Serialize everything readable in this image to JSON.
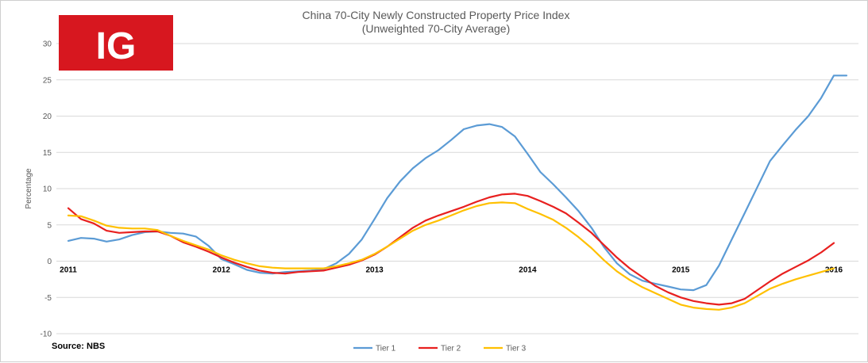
{
  "chart_data": {
    "type": "line",
    "title": "China 70-City Newly Constructed Property Price Index",
    "subtitle": "(Unweighted 70-City Average)",
    "ylabel": "Percentage",
    "xlabel": "",
    "ylim": [
      -10,
      30
    ],
    "yticks": [
      -10,
      -5,
      0,
      5,
      10,
      15,
      20,
      25,
      30
    ],
    "xlim": [
      2011.0,
      2016.1
    ],
    "xticks": [
      {
        "x": 2011,
        "label": "2011"
      },
      {
        "x": 2012,
        "label": "2012"
      },
      {
        "x": 2013,
        "label": "2013"
      },
      {
        "x": 2014,
        "label": "2014"
      },
      {
        "x": 2015,
        "label": "2015"
      },
      {
        "x": 2016,
        "label": "2016"
      }
    ],
    "grid": "horizontal",
    "legend_position": "bottom",
    "source": "Source: NBS",
    "logo_text": "IG",
    "series": [
      {
        "name": "Tier 1",
        "color": "#5b9bd5",
        "x": [
          2011.0,
          2011.083,
          2011.167,
          2011.25,
          2011.333,
          2011.417,
          2011.5,
          2011.583,
          2011.667,
          2011.75,
          2011.833,
          2011.917,
          2012.0,
          2012.083,
          2012.167,
          2012.25,
          2012.333,
          2012.417,
          2012.5,
          2012.583,
          2012.667,
          2012.75,
          2012.833,
          2012.917,
          2013.0,
          2013.083,
          2013.167,
          2013.25,
          2013.333,
          2013.417,
          2013.5,
          2013.583,
          2013.667,
          2013.75,
          2013.833,
          2013.917,
          2014.0,
          2014.083,
          2014.167,
          2014.25,
          2014.333,
          2014.417,
          2014.5,
          2014.583,
          2014.667,
          2014.75,
          2014.833,
          2014.917,
          2015.0,
          2015.083,
          2015.167,
          2015.25,
          2015.333,
          2015.417,
          2015.5,
          2015.583,
          2015.667,
          2015.75,
          2015.833,
          2015.917,
          2016.0,
          2016.083
        ],
        "values": [
          2.8,
          3.2,
          3.1,
          2.7,
          3.0,
          3.6,
          4.0,
          4.1,
          3.9,
          3.8,
          3.4,
          2.1,
          0.3,
          -0.4,
          -1.2,
          -1.6,
          -1.7,
          -1.5,
          -1.4,
          -1.3,
          -1.1,
          -0.3,
          1.0,
          3.0,
          5.8,
          8.7,
          11.0,
          12.8,
          14.2,
          15.3,
          16.7,
          18.2,
          18.7,
          18.9,
          18.5,
          17.2,
          14.8,
          12.3,
          10.6,
          8.8,
          6.9,
          4.6,
          1.9,
          -0.3,
          -1.8,
          -2.7,
          -3.1,
          -3.5,
          -3.9,
          -4.0,
          -3.3,
          -0.6,
          3.0,
          6.6,
          10.2,
          13.8,
          16.0,
          18.1,
          20.0,
          22.5,
          25.6,
          25.6
        ]
      },
      {
        "name": "Tier 2",
        "color": "#e8201f",
        "x": [
          2011.0,
          2011.083,
          2011.167,
          2011.25,
          2011.333,
          2011.417,
          2011.5,
          2011.583,
          2011.667,
          2011.75,
          2011.833,
          2011.917,
          2012.0,
          2012.083,
          2012.167,
          2012.25,
          2012.333,
          2012.417,
          2012.5,
          2012.583,
          2012.667,
          2012.75,
          2012.833,
          2012.917,
          2013.0,
          2013.083,
          2013.167,
          2013.25,
          2013.333,
          2013.417,
          2013.5,
          2013.583,
          2013.667,
          2013.75,
          2013.833,
          2013.917,
          2014.0,
          2014.083,
          2014.167,
          2014.25,
          2014.333,
          2014.417,
          2014.5,
          2014.583,
          2014.667,
          2014.75,
          2014.833,
          2014.917,
          2015.0,
          2015.083,
          2015.167,
          2015.25,
          2015.333,
          2015.417,
          2015.5,
          2015.583,
          2015.667,
          2015.75,
          2015.833,
          2015.917,
          2016.0
        ],
        "values": [
          7.3,
          5.8,
          5.2,
          4.2,
          3.9,
          4.0,
          4.1,
          4.1,
          3.5,
          2.6,
          2.0,
          1.3,
          0.5,
          -0.2,
          -0.8,
          -1.3,
          -1.6,
          -1.7,
          -1.5,
          -1.4,
          -1.3,
          -0.9,
          -0.5,
          0.1,
          0.9,
          2.0,
          3.3,
          4.6,
          5.6,
          6.3,
          6.9,
          7.5,
          8.2,
          8.8,
          9.2,
          9.3,
          9.0,
          8.3,
          7.5,
          6.6,
          5.3,
          3.9,
          2.2,
          0.5,
          -1.0,
          -2.2,
          -3.4,
          -4.3,
          -5.0,
          -5.5,
          -5.8,
          -6.0,
          -5.8,
          -5.2,
          -4.0,
          -2.8,
          -1.7,
          -0.8,
          0.1,
          1.2,
          2.5
        ]
      },
      {
        "name": "Tier 3",
        "color": "#ffc000",
        "x": [
          2011.0,
          2011.083,
          2011.167,
          2011.25,
          2011.333,
          2011.417,
          2011.5,
          2011.583,
          2011.667,
          2011.75,
          2011.833,
          2011.917,
          2012.0,
          2012.083,
          2012.167,
          2012.25,
          2012.333,
          2012.417,
          2012.5,
          2012.583,
          2012.667,
          2012.75,
          2012.833,
          2012.917,
          2013.0,
          2013.083,
          2013.167,
          2013.25,
          2013.333,
          2013.417,
          2013.5,
          2013.583,
          2013.667,
          2013.75,
          2013.833,
          2013.917,
          2014.0,
          2014.083,
          2014.167,
          2014.25,
          2014.333,
          2014.417,
          2014.5,
          2014.583,
          2014.667,
          2014.75,
          2014.833,
          2014.917,
          2015.0,
          2015.083,
          2015.167,
          2015.25,
          2015.333,
          2015.417,
          2015.5,
          2015.583,
          2015.667,
          2015.75,
          2015.833,
          2015.917,
          2016.0
        ],
        "values": [
          6.3,
          6.2,
          5.6,
          4.9,
          4.6,
          4.5,
          4.5,
          4.3,
          3.5,
          2.8,
          2.2,
          1.6,
          0.8,
          0.2,
          -0.3,
          -0.7,
          -0.9,
          -1.0,
          -1.0,
          -1.0,
          -1.0,
          -0.7,
          -0.3,
          0.2,
          1.0,
          2.0,
          3.1,
          4.2,
          5.0,
          5.6,
          6.3,
          7.0,
          7.6,
          8.0,
          8.1,
          8.0,
          7.2,
          6.5,
          5.7,
          4.6,
          3.3,
          1.8,
          0.1,
          -1.4,
          -2.6,
          -3.6,
          -4.4,
          -5.2,
          -6.0,
          -6.4,
          -6.6,
          -6.7,
          -6.4,
          -5.8,
          -4.8,
          -3.8,
          -3.1,
          -2.5,
          -2.0,
          -1.5,
          -1.0
        ]
      }
    ]
  }
}
